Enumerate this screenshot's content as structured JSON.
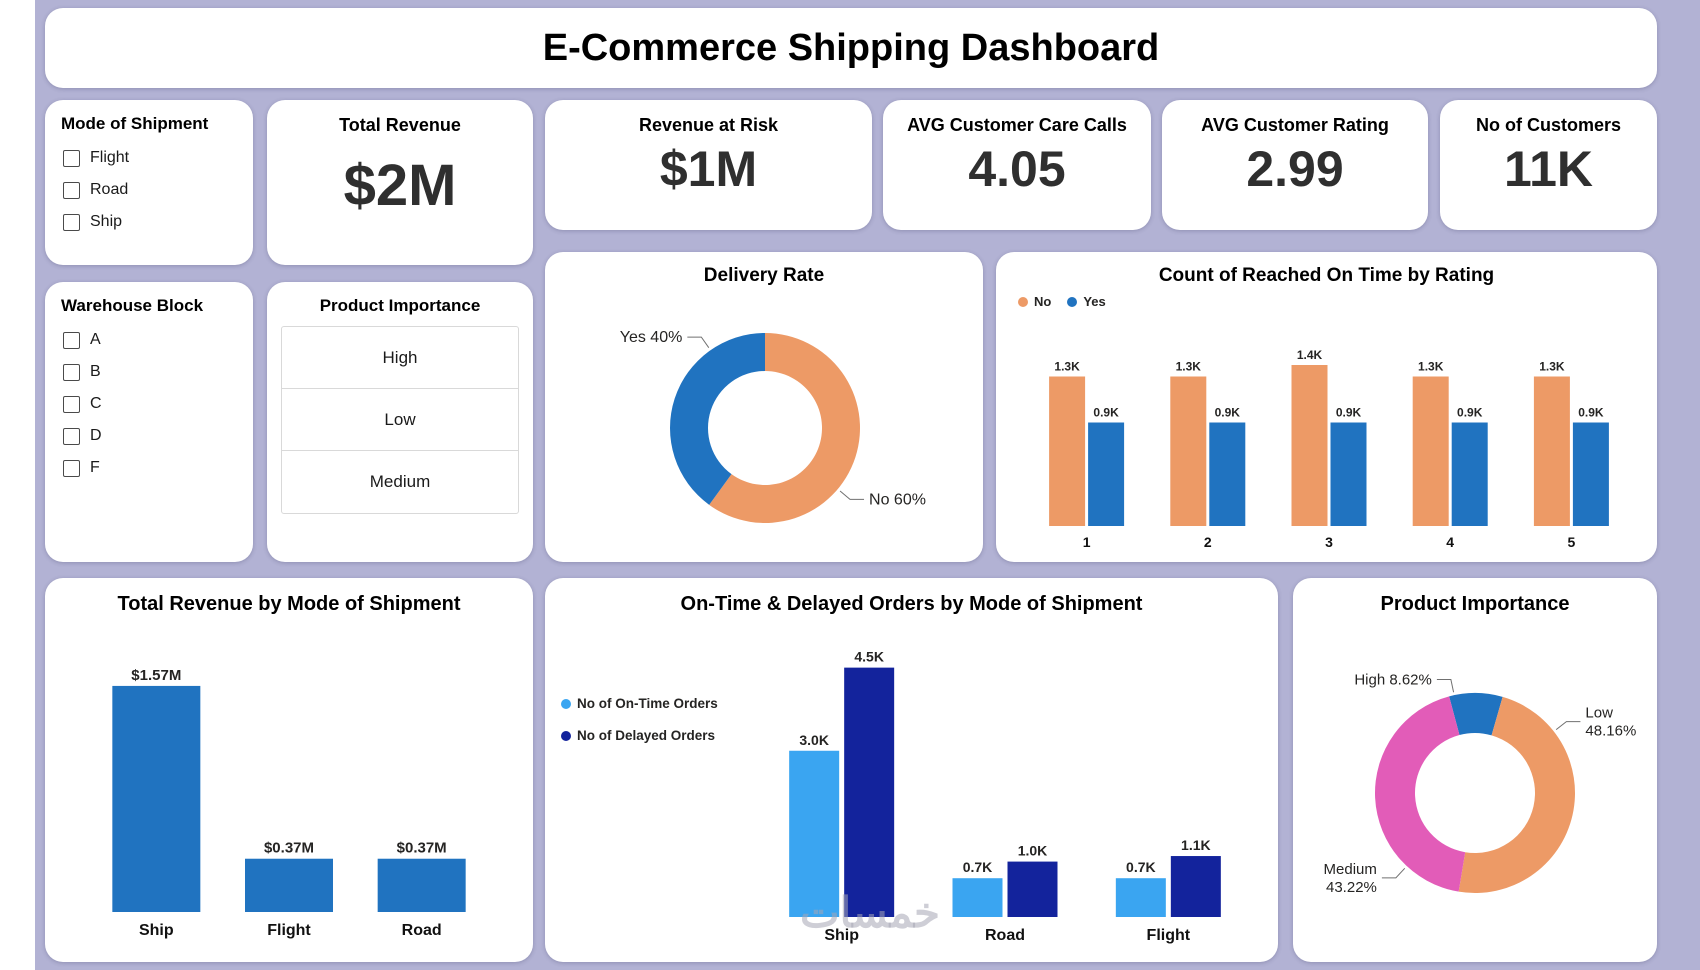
{
  "title": "E-Commerce Shipping Dashboard",
  "watermark": "خمسات",
  "colors": {
    "background": "#b2b2d4",
    "card": "#ffffff",
    "orange": "#ed9a66",
    "blue": "#2073c0",
    "light_blue": "#3aa5f1",
    "navy": "#13239c",
    "pink": "#e25cb8",
    "text": "#252423"
  },
  "filters": {
    "mode_of_shipment": {
      "title": "Mode of Shipment",
      "options": [
        "Flight",
        "Road",
        "Ship"
      ]
    },
    "warehouse_block": {
      "title": "Warehouse Block",
      "options": [
        "A",
        "B",
        "C",
        "D",
        "F"
      ]
    },
    "product_importance": {
      "title": "Product Importance",
      "options": [
        "High",
        "Low",
        "Medium"
      ]
    }
  },
  "kpis": [
    {
      "title": "Total Revenue",
      "value": "$2M"
    },
    {
      "title": "Revenue at Risk",
      "value": "$1M"
    },
    {
      "title": "AVG Customer Care Calls",
      "value": "4.05"
    },
    {
      "title": "AVG Customer Rating",
      "value": "2.99"
    },
    {
      "title": "No of Customers",
      "value": "11K"
    }
  ],
  "chart_data": [
    {
      "id": "delivery_rate",
      "type": "pie",
      "title": "Delivery Rate",
      "donut": true,
      "slices": [
        {
          "name": "No",
          "value": 60,
          "color_key": "orange",
          "label_lines": [
            "No 60%"
          ],
          "label_angle": 130
        },
        {
          "name": "Yes",
          "value": 40,
          "color_key": "blue",
          "label_lines": [
            "Yes 40%"
          ],
          "label_angle": 325
        }
      ]
    },
    {
      "id": "reached_on_time",
      "type": "bar",
      "title": "Count of Reached On Time by Rating",
      "categories": [
        "1",
        "2",
        "3",
        "4",
        "5"
      ],
      "series": [
        {
          "name": "No",
          "color_key": "orange",
          "values": [
            1.3,
            1.3,
            1.4,
            1.3,
            1.3
          ],
          "labels": [
            "1.3K",
            "1.3K",
            "1.4K",
            "1.3K",
            "1.3K"
          ]
        },
        {
          "name": "Yes",
          "color_key": "blue",
          "values": [
            0.9,
            0.9,
            0.9,
            0.9,
            0.9
          ],
          "labels": [
            "0.9K",
            "0.9K",
            "0.9K",
            "0.9K",
            "0.9K"
          ]
        }
      ],
      "ymax": 1.6,
      "legend_position": "top-left"
    },
    {
      "id": "revenue_by_mode",
      "type": "bar",
      "title": "Total Revenue by Mode of Shipment",
      "categories": [
        "Ship",
        "Flight",
        "Road"
      ],
      "series": [
        {
          "name": "Total Revenue",
          "color_key": "blue",
          "values": [
            1.57,
            0.37,
            0.37
          ],
          "labels": [
            "$1.57M",
            "$0.37M",
            "$0.37M"
          ]
        }
      ],
      "ymax": 1.75
    },
    {
      "id": "ontime_delayed",
      "type": "bar",
      "title": "On-Time & Delayed Orders by Mode of Shipment",
      "categories": [
        "Ship",
        "Road",
        "Flight"
      ],
      "series": [
        {
          "name": "No of On-Time Orders",
          "color_key": "light_blue",
          "values": [
            3.0,
            0.7,
            0.7
          ],
          "labels": [
            "3.0K",
            "0.7K",
            "0.7K"
          ]
        },
        {
          "name": "No of Delayed Orders",
          "color_key": "navy",
          "values": [
            4.5,
            1.0,
            1.1
          ],
          "labels": [
            "4.5K",
            "1.0K",
            "1.1K"
          ]
        }
      ],
      "ymax": 4.8,
      "legend_position": "left"
    },
    {
      "id": "product_importance",
      "type": "pie",
      "title": "Product Importance",
      "donut": true,
      "slices": [
        {
          "name": "High",
          "value": 8.62,
          "color_key": "blue",
          "label_lines": [
            "High 8.62%"
          ],
          "label_angle": 348
        },
        {
          "name": "Low",
          "value": 48.16,
          "color_key": "orange",
          "label_lines": [
            "Low",
            "48.16%"
          ],
          "label_angle": 52
        },
        {
          "name": "Medium",
          "value": 43.22,
          "color_key": "pink",
          "label_lines": [
            "Medium",
            "43.22%"
          ],
          "label_angle": 223
        }
      ]
    }
  ]
}
